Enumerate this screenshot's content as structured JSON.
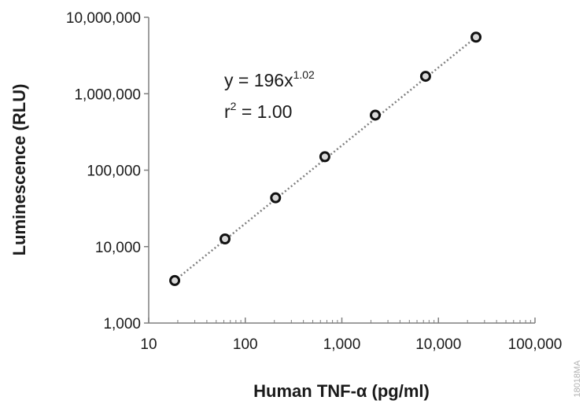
{
  "chart_data": {
    "type": "scatter",
    "x_scale": "log",
    "y_scale": "log",
    "xlim": [
      10,
      100000
    ],
    "ylim": [
      1000,
      10000000
    ],
    "xlabel": "Human TNF-α (pg/ml)",
    "ylabel": "Luminescence (RLU)",
    "x_ticks": [
      10,
      100,
      1000,
      10000,
      100000
    ],
    "y_ticks": [
      1000,
      10000,
      100000,
      1000000,
      10000000
    ],
    "x_tick_labels": [
      "10",
      "100",
      "1,000",
      "10,000",
      "100,000"
    ],
    "y_tick_labels": [
      "1,000",
      "10,000",
      "100,000",
      "1,000,000",
      "10,000,000"
    ],
    "grid": false,
    "legend": "none",
    "points": [
      {
        "x": 18.6,
        "y": 3600
      },
      {
        "x": 61.7,
        "y": 12600
      },
      {
        "x": 206,
        "y": 43500
      },
      {
        "x": 667,
        "y": 150000
      },
      {
        "x": 2220,
        "y": 525000
      },
      {
        "x": 7360,
        "y": 1690000
      },
      {
        "x": 24500,
        "y": 5500000
      }
    ],
    "trendline": {
      "type": "power",
      "style": "dotted",
      "color": "#808080"
    },
    "equation": {
      "prefix": "y = 196x",
      "exponent": "1.02"
    },
    "r_squared": {
      "base": "r",
      "power": "2",
      "rest": " = 1.00"
    }
  },
  "figure_code": "18018MA"
}
